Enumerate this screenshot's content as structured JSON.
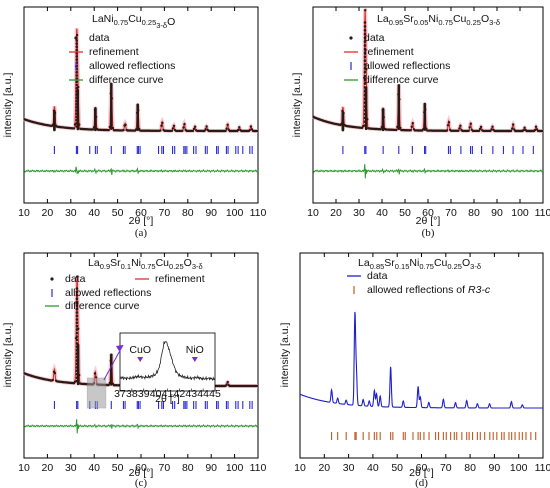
{
  "colors": {
    "data_marker": "#2a1a14",
    "refinement": "#e0302a",
    "refinement_halo": "#f2b8c4",
    "reflection": "#2a2ad8",
    "difference": "#2f9a2f",
    "pattern_blue": "#1f1fd0",
    "reflection_orange": "#c05a20",
    "inset_box": "#9a9a9a",
    "inset_arrow": "#7a2ad8",
    "axis": "#000000"
  },
  "chart_data": [
    {
      "type": "line",
      "panel": "(a)",
      "title": "LaNi0.75Cu0.25O3-δ",
      "title_parts": {
        "main": "LaNi",
        "sub1": "0.75",
        "mid": "Cu",
        "sub2": "0.25",
        "end": "O",
        "sub3": "3-δ"
      },
      "xlabel": "2θ [°]",
      "ylabel": "intensity [a.u.]",
      "xlim": [
        10,
        110
      ],
      "xticks": [
        "10",
        "20",
        "30",
        "40",
        "50",
        "60",
        "70",
        "80",
        "90",
        "100",
        "110"
      ],
      "legend": [
        "data",
        "refinement",
        "allowed reflections",
        "difference curve"
      ],
      "peaks": [
        [
          23.0,
          0.22
        ],
        [
          32.5,
          1.0
        ],
        [
          33.0,
          0.45
        ],
        [
          40.5,
          0.25
        ],
        [
          47.3,
          0.52
        ],
        [
          53.2,
          0.08
        ],
        [
          58.6,
          0.29
        ],
        [
          69.0,
          0.1
        ],
        [
          74.0,
          0.06
        ],
        [
          78.5,
          0.08
        ],
        [
          83.0,
          0.05
        ],
        [
          88.0,
          0.05
        ],
        [
          97.0,
          0.07
        ],
        [
          102.0,
          0.04
        ],
        [
          107.0,
          0.05
        ]
      ],
      "reflections": [
        23.0,
        32.4,
        32.9,
        38.1,
        40.5,
        41.3,
        47.3,
        52.5,
        53.2,
        58.4,
        58.9,
        59.6,
        67.5,
        68.9,
        69.6,
        73.5,
        74.4,
        78.3,
        78.9,
        79.6,
        82.5,
        83.5,
        87.5,
        88.3,
        92.3,
        93.0,
        96.5,
        97.2,
        100.5,
        101.5,
        103.5,
        106.5,
        107.5
      ]
    },
    {
      "type": "line",
      "panel": "(b)",
      "title": "La0.95Sr0.05Ni0.75Cu0.25O3-δ",
      "title_parts": {
        "main": "La",
        "sub1": "0.95",
        "mid": "Sr",
        "sub2": "0.05",
        "mid2": "Ni",
        "sub3": "0.75",
        "mid3": "Cu",
        "sub4": "0.25",
        "end": "O",
        "sub5": "3-δ"
      },
      "xlabel": "2θ [°]",
      "ylabel": "intensity [a.u.]",
      "xlim": [
        10,
        110
      ],
      "xticks": [
        "10",
        "20",
        "30",
        "40",
        "50",
        "60",
        "70",
        "80",
        "90",
        "100",
        "110"
      ],
      "legend": [
        "data",
        "refinement",
        "allowed reflections",
        "difference curve"
      ],
      "peaks": [
        [
          23.0,
          0.17
        ],
        [
          32.6,
          1.0
        ],
        [
          33.1,
          0.4
        ],
        [
          40.5,
          0.2
        ],
        [
          47.3,
          0.42
        ],
        [
          53.3,
          0.07
        ],
        [
          58.6,
          0.25
        ],
        [
          69.0,
          0.09
        ],
        [
          74.0,
          0.05
        ],
        [
          78.5,
          0.07
        ],
        [
          83.0,
          0.04
        ],
        [
          88.0,
          0.04
        ],
        [
          97.0,
          0.06
        ],
        [
          102.0,
          0.03
        ],
        [
          107.0,
          0.04
        ]
      ],
      "reflections": [
        23.0,
        32.5,
        33.0,
        40.5,
        47.3,
        53.2,
        58.5,
        59.0,
        68.9,
        69.7,
        74.3,
        78.5,
        79.3,
        83.3,
        88.2,
        92.8,
        97.0,
        101.3,
        105.8
      ]
    },
    {
      "type": "line",
      "panel": "(c)",
      "title": "La0.9Sr0.1Ni0.75Cu0.25O3-δ",
      "title_parts": {
        "main": "La",
        "sub1": "0.9",
        "mid": "Sr",
        "sub2": "0.1",
        "mid2": "Ni",
        "sub3": "0.75",
        "mid3": "Cu",
        "sub4": "0.25",
        "end": "O",
        "sub5": "3-δ"
      },
      "xlabel": "2θ [°]",
      "ylabel": "intensity [a.u.]",
      "xlim": [
        10,
        110
      ],
      "xticks": [
        "10",
        "20",
        "30",
        "40",
        "50",
        "60",
        "70",
        "80",
        "90",
        "100",
        "110"
      ],
      "legend": [
        "data",
        "refinement",
        "allowed reflections",
        "difference curve"
      ],
      "peaks": [
        [
          23.0,
          0.12
        ],
        [
          32.6,
          1.0
        ],
        [
          33.1,
          0.42
        ],
        [
          40.5,
          0.13
        ],
        [
          47.3,
          0.32
        ],
        [
          53.3,
          0.05
        ],
        [
          58.6,
          0.17
        ],
        [
          69.0,
          0.06
        ],
        [
          78.5,
          0.05
        ],
        [
          88.0,
          0.03
        ],
        [
          97.0,
          0.04
        ]
      ],
      "reflections": [
        23.0,
        32.5,
        33.0,
        38.1,
        40.5,
        41.3,
        47.3,
        52.5,
        53.2,
        58.4,
        58.9,
        59.6,
        67.5,
        68.9,
        69.6,
        73.5,
        74.4,
        78.3,
        78.9,
        79.6,
        82.5,
        83.5,
        87.5,
        88.3,
        92.3,
        93.0,
        96.5,
        97.2,
        100.5,
        101.5,
        103.5,
        106.5,
        107.5
      ],
      "inset": {
        "xlim": [
          37,
          45
        ],
        "xticks": [
          "37",
          "38",
          "39",
          "40",
          "41",
          "42",
          "43",
          "44",
          "45"
        ],
        "xlabel": "2θ [°]",
        "annotations": [
          "CuO",
          "NiO"
        ],
        "annotation_x": [
          38.7,
          43.3
        ],
        "points": [
          [
            37.0,
            0.2
          ],
          [
            37.5,
            0.18
          ],
          [
            38.0,
            0.19
          ],
          [
            38.5,
            0.22
          ],
          [
            39.0,
            0.2
          ],
          [
            39.5,
            0.21
          ],
          [
            40.0,
            0.26
          ],
          [
            40.3,
            0.4
          ],
          [
            40.5,
            0.66
          ],
          [
            40.7,
            0.9
          ],
          [
            40.85,
            0.96
          ],
          [
            41.0,
            0.88
          ],
          [
            41.2,
            0.72
          ],
          [
            41.4,
            0.55
          ],
          [
            41.7,
            0.33
          ],
          [
            42.0,
            0.24
          ],
          [
            42.5,
            0.2
          ],
          [
            43.0,
            0.18
          ],
          [
            43.5,
            0.2
          ],
          [
            44.0,
            0.17
          ],
          [
            44.5,
            0.18
          ],
          [
            45.0,
            0.16
          ]
        ]
      }
    },
    {
      "type": "line",
      "panel": "(d)",
      "title": "La0.85Sr0.15Ni0.75Cu0.25O3-δ",
      "title_parts": {
        "main": "La",
        "sub1": "0.85",
        "mid": "Sr",
        "sub2": "0.15",
        "mid2": "Ni",
        "sub3": "0.75",
        "mid3": "Cu",
        "sub4": "0.25",
        "end": "O",
        "sub5": "3-δ"
      },
      "xlabel": "2θ [°]",
      "ylabel": "intensity [a.u.]",
      "xlim": [
        10,
        110
      ],
      "xticks": [
        "10",
        "20",
        "30",
        "40",
        "50",
        "60",
        "70",
        "80",
        "90",
        "100",
        "110"
      ],
      "legend": [
        "data",
        "allowed reflections of R3-c"
      ],
      "legend_italic": "R3-c",
      "peaks": [
        [
          23.0,
          0.12
        ],
        [
          25.5,
          0.05
        ],
        [
          29.0,
          0.04
        ],
        [
          32.6,
          0.85
        ],
        [
          33.2,
          0.3
        ],
        [
          36.0,
          0.06
        ],
        [
          38.5,
          0.05
        ],
        [
          40.6,
          0.15
        ],
        [
          41.5,
          0.12
        ],
        [
          43.0,
          0.1
        ],
        [
          47.3,
          0.38
        ],
        [
          52.5,
          0.06
        ],
        [
          58.6,
          0.2
        ],
        [
          59.5,
          0.1
        ],
        [
          63.0,
          0.05
        ],
        [
          69.0,
          0.08
        ],
        [
          74.0,
          0.05
        ],
        [
          78.6,
          0.07
        ],
        [
          83.0,
          0.04
        ],
        [
          88.0,
          0.04
        ],
        [
          97.0,
          0.06
        ],
        [
          101.5,
          0.03
        ]
      ],
      "reflections": [
        23.0,
        25.5,
        29.0,
        32.6,
        33.1,
        36.0,
        38.4,
        40.6,
        41.6,
        43.0,
        47.3,
        48.2,
        52.5,
        53.3,
        56.5,
        58.6,
        59.5,
        61.0,
        63.1,
        65.8,
        67.0,
        69.0,
        70.2,
        72.0,
        73.5,
        74.5,
        76.6,
        78.6,
        79.6,
        81.0,
        83.0,
        84.2,
        86.0,
        88.1,
        89.5,
        91.0,
        93.0,
        94.0,
        96.0,
        97.1,
        98.5,
        100.2,
        101.5,
        103.0,
        105.0,
        107.0
      ]
    }
  ],
  "panels": [
    {
      "label": "(a)"
    },
    {
      "label": "(b)"
    },
    {
      "label": "(c)"
    },
    {
      "label": "(d)"
    }
  ]
}
